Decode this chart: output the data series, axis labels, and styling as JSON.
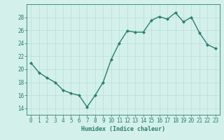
{
  "x": [
    0,
    1,
    2,
    3,
    4,
    5,
    6,
    7,
    8,
    9,
    10,
    11,
    12,
    13,
    14,
    15,
    16,
    17,
    18,
    19,
    20,
    21,
    22,
    23
  ],
  "y": [
    21.0,
    19.5,
    18.7,
    18.0,
    16.8,
    16.3,
    16.0,
    14.2,
    16.0,
    18.0,
    21.5,
    24.0,
    25.9,
    25.7,
    25.7,
    27.5,
    28.1,
    27.7,
    28.7,
    27.3,
    28.0,
    25.6,
    23.8,
    23.2
  ],
  "line_color": "#2a7d6f",
  "marker_color": "#2a7d6f",
  "bg_color": "#d4f0eb",
  "grid_color": "#b8ddd8",
  "xlabel": "Humidex (Indice chaleur)",
  "ylim": [
    13,
    30
  ],
  "yticks": [
    14,
    16,
    18,
    20,
    22,
    24,
    26,
    28
  ],
  "xlim": [
    -0.5,
    23.5
  ],
  "xticks": [
    0,
    1,
    2,
    3,
    4,
    5,
    6,
    7,
    8,
    9,
    10,
    11,
    12,
    13,
    14,
    15,
    16,
    17,
    18,
    19,
    20,
    21,
    22,
    23
  ],
  "xlabel_fontsize": 6.0,
  "tick_fontsize": 5.5,
  "line_width": 1.0,
  "marker_size": 2.2
}
